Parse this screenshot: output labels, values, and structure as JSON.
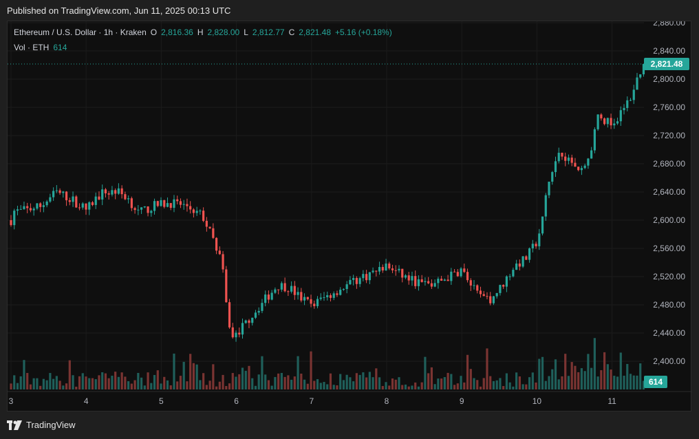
{
  "header": {
    "published_text": "Published on TradingView.com, Jun 11, 2025 00:13 UTC"
  },
  "legend": {
    "symbol": "Ethereum / U.S. Dollar · 1h · Kraken",
    "O_label": "O",
    "O_value": "2,816.36",
    "H_label": "H",
    "H_value": "2,828.00",
    "L_label": "L",
    "L_value": "2,812.77",
    "C_label": "C",
    "C_value": "2,821.48",
    "change": "+5.16 (+0.18%)",
    "vol_label": "Vol · ETH",
    "vol_value": "614"
  },
  "colors": {
    "up": "#26a69a",
    "down": "#ef5350",
    "bg": "#0f0f0f",
    "grid": "#1e1e1e",
    "axis_text": "#b2b5be"
  },
  "footer": {
    "brand": "TradingView",
    "icon": "tradingview-logo-icon"
  },
  "chart_data": {
    "type": "candlestick",
    "title": "Ethereum / U.S. Dollar · 1h · Kraken",
    "x_ticks": [
      "3",
      "4",
      "5",
      "6",
      "7",
      "8",
      "9",
      "10",
      "11"
    ],
    "y_ticks": [
      "2,400.00",
      "2,440.00",
      "2,480.00",
      "2,520.00",
      "2,560.00",
      "2,600.00",
      "2,640.00",
      "2,680.00",
      "2,720.00",
      "2,760.00",
      "2,800.00",
      "2,840.00",
      "2,880.00"
    ],
    "ylim": [
      2360,
      2880
    ],
    "last_price": 2821.48,
    "last_price_label": "2,821.48",
    "volume_label": "614",
    "waypoints": [
      [
        0,
        2600
      ],
      [
        0.05,
        2615
      ],
      [
        0.1,
        2612
      ],
      [
        0.4,
        2620
      ],
      [
        0.6,
        2640
      ],
      [
        0.8,
        2630
      ],
      [
        1.0,
        2615
      ],
      [
        1.2,
        2638
      ],
      [
        1.4,
        2642
      ],
      [
        1.55,
        2632
      ],
      [
        1.7,
        2610
      ],
      [
        1.9,
        2620
      ],
      [
        2.1,
        2625
      ],
      [
        2.35,
        2620
      ],
      [
        2.55,
        2606
      ],
      [
        2.7,
        2570
      ],
      [
        2.8,
        2545
      ],
      [
        2.88,
        2465
      ],
      [
        2.95,
        2432
      ],
      [
        3.15,
        2458
      ],
      [
        3.4,
        2490
      ],
      [
        3.55,
        2508
      ],
      [
        3.7,
        2505
      ],
      [
        3.85,
        2490
      ],
      [
        4.0,
        2480
      ],
      [
        4.3,
        2498
      ],
      [
        4.6,
        2515
      ],
      [
        4.9,
        2530
      ],
      [
        5.0,
        2535
      ],
      [
        5.2,
        2522
      ],
      [
        5.4,
        2512
      ],
      [
        5.6,
        2508
      ],
      [
        5.8,
        2518
      ],
      [
        6.0,
        2530
      ],
      [
        6.1,
        2512
      ],
      [
        6.2,
        2495
      ],
      [
        6.35,
        2485
      ],
      [
        6.5,
        2502
      ],
      [
        6.7,
        2535
      ],
      [
        6.85,
        2545
      ],
      [
        7.0,
        2570
      ],
      [
        7.05,
        2590
      ],
      [
        7.15,
        2650
      ],
      [
        7.3,
        2700
      ],
      [
        7.45,
        2682
      ],
      [
        7.6,
        2672
      ],
      [
        7.7,
        2688
      ],
      [
        7.8,
        2745
      ],
      [
        7.95,
        2740
      ],
      [
        8.05,
        2730
      ],
      [
        8.15,
        2760
      ],
      [
        8.25,
        2775
      ],
      [
        8.35,
        2805
      ],
      [
        8.42,
        2821.48
      ]
    ],
    "y_axis_values": [
      2400,
      2440,
      2480,
      2520,
      2560,
      2600,
      2640,
      2680,
      2720,
      2760,
      2800,
      2840,
      2880
    ]
  }
}
